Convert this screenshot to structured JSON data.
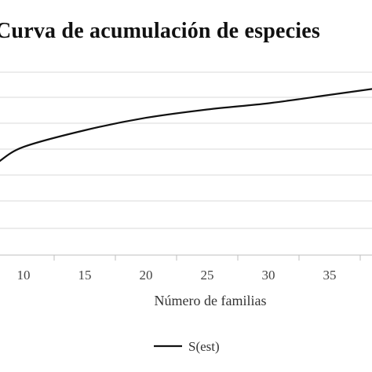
{
  "chart_data": {
    "type": "line",
    "title": "Curva de acumulación de especies",
    "xlabel": "Número de familias",
    "ylabel": "",
    "x_ticks": [
      10,
      15,
      20,
      25,
      30,
      35
    ],
    "xlim": [
      8,
      41
    ],
    "ylim": [
      0,
      1
    ],
    "grid": "horizontal",
    "legend_position": "bottom",
    "series": [
      {
        "name": "S(est)",
        "color": "#111111",
        "x": [
          8,
          10,
          15,
          20,
          25,
          30,
          35,
          41
        ],
        "y": [
          0.45,
          0.52,
          0.6,
          0.66,
          0.7,
          0.73,
          0.77,
          0.82
        ]
      }
    ]
  }
}
